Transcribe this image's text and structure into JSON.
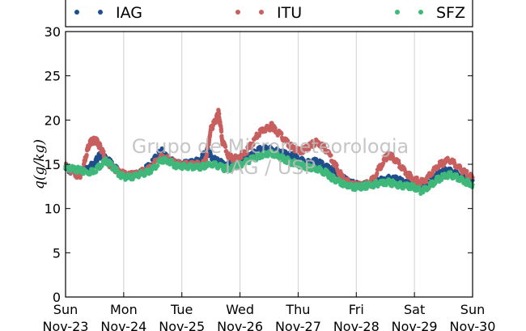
{
  "chart_data": {
    "type": "scatter",
    "ylabel": "q(g/kg)",
    "ylim": [
      0,
      30
    ],
    "yticks": [
      0,
      5,
      10,
      15,
      20,
      25,
      30
    ],
    "xlim": [
      0,
      7
    ],
    "xticks": [
      {
        "day": "Sun",
        "date": "Nov-23"
      },
      {
        "day": "Mon",
        "date": "Nov-24"
      },
      {
        "day": "Tue",
        "date": "Nov-25"
      },
      {
        "day": "Wed",
        "date": "Nov-26"
      },
      {
        "day": "Thu",
        "date": "Nov-27"
      },
      {
        "day": "Fri",
        "date": "Nov-28"
      },
      {
        "day": "Sat",
        "date": "Nov-29"
      },
      {
        "day": "Sun",
        "date": "Nov-30"
      }
    ],
    "grid": "vertical",
    "legend_position": "top",
    "watermark": {
      "line1": "Grupo de Micrometeorologia",
      "line2": "IAG / USP"
    },
    "series": [
      {
        "name": "IAG",
        "color": "#1f4e8c",
        "points": [
          [
            0.0,
            14.5
          ],
          [
            0.1,
            14.2
          ],
          [
            0.2,
            14.0
          ],
          [
            0.3,
            14.3
          ],
          [
            0.4,
            14.8
          ],
          [
            0.5,
            15.0
          ],
          [
            0.55,
            15.8
          ],
          [
            0.6,
            16.0
          ],
          [
            0.7,
            15.6
          ],
          [
            0.8,
            15.0
          ],
          [
            0.9,
            14.3
          ],
          [
            1.0,
            13.8
          ],
          [
            1.1,
            13.7
          ],
          [
            1.2,
            13.8
          ],
          [
            1.3,
            14.0
          ],
          [
            1.4,
            14.6
          ],
          [
            1.5,
            15.3
          ],
          [
            1.6,
            16.2
          ],
          [
            1.65,
            16.5
          ],
          [
            1.7,
            16.1
          ],
          [
            1.8,
            15.5
          ],
          [
            1.9,
            15.1
          ],
          [
            2.0,
            15.0
          ],
          [
            2.1,
            15.1
          ],
          [
            2.2,
            15.2
          ],
          [
            2.3,
            15.5
          ],
          [
            2.4,
            16.2
          ],
          [
            2.45,
            16.5
          ],
          [
            2.5,
            15.9
          ],
          [
            2.6,
            15.4
          ],
          [
            2.7,
            15.1
          ],
          [
            2.8,
            15.0
          ],
          [
            2.9,
            15.3
          ],
          [
            3.0,
            15.6
          ],
          [
            3.1,
            15.9
          ],
          [
            3.2,
            16.0
          ],
          [
            3.3,
            16.5
          ],
          [
            3.4,
            16.8
          ],
          [
            3.5,
            16.7
          ],
          [
            3.6,
            16.5
          ],
          [
            3.7,
            16.3
          ],
          [
            3.8,
            16.1
          ],
          [
            3.9,
            15.9
          ],
          [
            4.0,
            15.6
          ],
          [
            4.1,
            15.3
          ],
          [
            4.2,
            15.1
          ],
          [
            4.3,
            15.4
          ],
          [
            4.4,
            15.0
          ],
          [
            4.5,
            14.6
          ],
          [
            4.6,
            14.3
          ],
          [
            4.7,
            13.8
          ],
          [
            4.8,
            13.3
          ],
          [
            4.9,
            12.9
          ],
          [
            5.0,
            12.7
          ],
          [
            5.1,
            12.6
          ],
          [
            5.2,
            12.7
          ],
          [
            5.3,
            12.9
          ],
          [
            5.4,
            13.1
          ],
          [
            5.5,
            13.3
          ],
          [
            5.6,
            13.4
          ],
          [
            5.7,
            13.3
          ],
          [
            5.8,
            13.0
          ],
          [
            5.9,
            12.8
          ],
          [
            6.0,
            12.7
          ],
          [
            6.1,
            12.6
          ],
          [
            6.2,
            12.8
          ],
          [
            6.3,
            13.3
          ],
          [
            6.4,
            13.9
          ],
          [
            6.5,
            14.2
          ],
          [
            6.6,
            14.3
          ],
          [
            6.7,
            14.0
          ],
          [
            6.8,
            13.7
          ],
          [
            6.9,
            13.4
          ],
          [
            7.0,
            13.2
          ]
        ]
      },
      {
        "name": "ITU",
        "color": "#c85f5f",
        "points": [
          [
            0.0,
            14.8
          ],
          [
            0.1,
            14.2
          ],
          [
            0.2,
            13.8
          ],
          [
            0.25,
            13.7
          ],
          [
            0.3,
            14.5
          ],
          [
            0.35,
            16.0
          ],
          [
            0.4,
            17.2
          ],
          [
            0.45,
            17.6
          ],
          [
            0.5,
            17.7
          ],
          [
            0.55,
            17.5
          ],
          [
            0.6,
            16.9
          ],
          [
            0.65,
            16.2
          ],
          [
            0.7,
            15.3
          ],
          [
            0.8,
            14.7
          ],
          [
            0.9,
            14.2
          ],
          [
            1.0,
            13.9
          ],
          [
            1.1,
            13.8
          ],
          [
            1.2,
            13.9
          ],
          [
            1.3,
            14.1
          ],
          [
            1.4,
            14.4
          ],
          [
            1.5,
            14.9
          ],
          [
            1.6,
            15.7
          ],
          [
            1.7,
            15.8
          ],
          [
            1.8,
            15.4
          ],
          [
            1.9,
            15.1
          ],
          [
            2.0,
            15.0
          ],
          [
            2.1,
            15.0
          ],
          [
            2.2,
            14.9
          ],
          [
            2.3,
            15.0
          ],
          [
            2.4,
            15.2
          ],
          [
            2.45,
            17.0
          ],
          [
            2.5,
            19.0
          ],
          [
            2.55,
            19.6
          ],
          [
            2.6,
            20.2
          ],
          [
            2.63,
            20.9
          ],
          [
            2.66,
            19.5
          ],
          [
            2.7,
            17.5
          ],
          [
            2.8,
            16.0
          ],
          [
            2.9,
            15.6
          ],
          [
            3.0,
            15.9
          ],
          [
            3.1,
            16.4
          ],
          [
            3.2,
            17.2
          ],
          [
            3.3,
            18.3
          ],
          [
            3.4,
            18.9
          ],
          [
            3.5,
            19.1
          ],
          [
            3.55,
            19.4
          ],
          [
            3.6,
            18.9
          ],
          [
            3.7,
            18.3
          ],
          [
            3.8,
            17.5
          ],
          [
            3.9,
            16.9
          ],
          [
            4.0,
            16.5
          ],
          [
            4.1,
            16.6
          ],
          [
            4.2,
            17.1
          ],
          [
            4.3,
            17.5
          ],
          [
            4.4,
            17.2
          ],
          [
            4.5,
            16.5
          ],
          [
            4.6,
            15.4
          ],
          [
            4.7,
            14.1
          ],
          [
            4.8,
            13.3
          ],
          [
            4.9,
            12.8
          ],
          [
            5.0,
            12.6
          ],
          [
            5.1,
            12.6
          ],
          [
            5.2,
            12.8
          ],
          [
            5.3,
            13.5
          ],
          [
            5.4,
            14.6
          ],
          [
            5.5,
            15.7
          ],
          [
            5.55,
            16.0
          ],
          [
            5.6,
            15.9
          ],
          [
            5.7,
            15.3
          ],
          [
            5.8,
            14.5
          ],
          [
            5.9,
            13.8
          ],
          [
            6.0,
            13.3
          ],
          [
            6.1,
            13.0
          ],
          [
            6.2,
            13.3
          ],
          [
            6.3,
            14.0
          ],
          [
            6.4,
            14.8
          ],
          [
            6.5,
            15.2
          ],
          [
            6.6,
            15.5
          ],
          [
            6.7,
            15.0
          ],
          [
            6.8,
            14.4
          ],
          [
            6.9,
            13.9
          ],
          [
            7.0,
            13.5
          ]
        ]
      },
      {
        "name": "SFZ",
        "color": "#3fb87a",
        "points": [
          [
            0.0,
            14.6
          ],
          [
            0.1,
            14.5
          ],
          [
            0.2,
            14.4
          ],
          [
            0.3,
            14.2
          ],
          [
            0.4,
            14.1
          ],
          [
            0.5,
            14.3
          ],
          [
            0.6,
            14.9
          ],
          [
            0.7,
            15.4
          ],
          [
            0.8,
            14.8
          ],
          [
            0.9,
            14.0
          ],
          [
            1.0,
            13.6
          ],
          [
            1.1,
            13.5
          ],
          [
            1.2,
            13.7
          ],
          [
            1.3,
            13.9
          ],
          [
            1.4,
            14.1
          ],
          [
            1.5,
            14.4
          ],
          [
            1.6,
            15.2
          ],
          [
            1.7,
            15.5
          ],
          [
            1.8,
            15.2
          ],
          [
            1.9,
            14.9
          ],
          [
            2.0,
            14.8
          ],
          [
            2.1,
            14.7
          ],
          [
            2.2,
            14.7
          ],
          [
            2.3,
            14.6
          ],
          [
            2.4,
            14.8
          ],
          [
            2.5,
            15.0
          ],
          [
            2.6,
            14.9
          ],
          [
            2.7,
            14.6
          ],
          [
            2.8,
            14.5
          ],
          [
            2.9,
            14.7
          ],
          [
            3.0,
            15.0
          ],
          [
            3.1,
            15.3
          ],
          [
            3.2,
            15.6
          ],
          [
            3.3,
            15.8
          ],
          [
            3.4,
            16.0
          ],
          [
            3.5,
            16.2
          ],
          [
            3.6,
            16.1
          ],
          [
            3.7,
            15.8
          ],
          [
            3.8,
            15.5
          ],
          [
            3.9,
            15.2
          ],
          [
            4.0,
            15.0
          ],
          [
            4.1,
            14.8
          ],
          [
            4.2,
            14.6
          ],
          [
            4.3,
            14.5
          ],
          [
            4.4,
            14.3
          ],
          [
            4.5,
            14.0
          ],
          [
            4.55,
            13.6
          ],
          [
            4.6,
            13.4
          ],
          [
            4.7,
            13.0
          ],
          [
            4.8,
            12.7
          ],
          [
            4.9,
            12.5
          ],
          [
            5.0,
            12.4
          ],
          [
            5.1,
            12.5
          ],
          [
            5.2,
            12.6
          ],
          [
            5.3,
            12.7
          ],
          [
            5.4,
            12.9
          ],
          [
            5.5,
            13.0
          ],
          [
            5.6,
            12.9
          ],
          [
            5.7,
            12.7
          ],
          [
            5.8,
            12.6
          ],
          [
            5.9,
            12.5
          ],
          [
            6.0,
            12.4
          ],
          [
            6.1,
            12.0
          ],
          [
            6.2,
            12.3
          ],
          [
            6.3,
            12.8
          ],
          [
            6.4,
            13.3
          ],
          [
            6.5,
            13.6
          ],
          [
            6.6,
            13.8
          ],
          [
            6.7,
            13.6
          ],
          [
            6.8,
            13.3
          ],
          [
            6.9,
            13.0
          ],
          [
            7.0,
            12.7
          ]
        ]
      }
    ]
  }
}
